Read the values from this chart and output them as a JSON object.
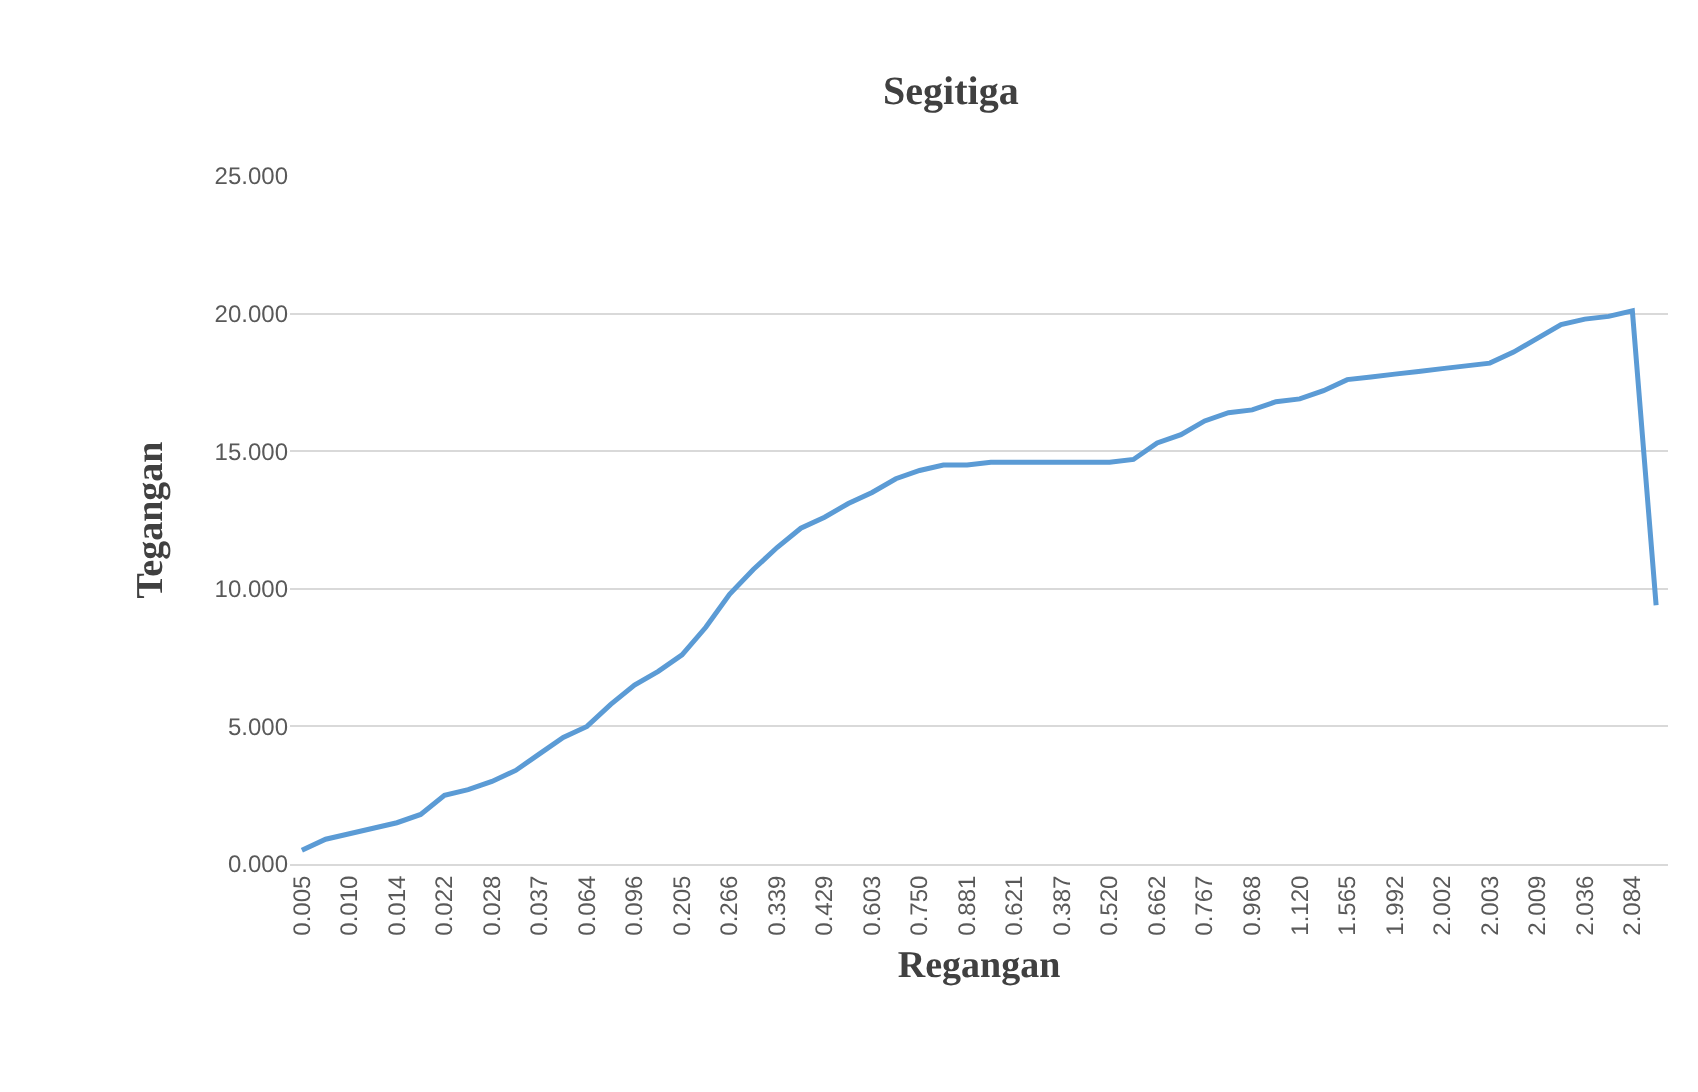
{
  "chart_data": {
    "type": "line",
    "title": "Segitiga",
    "xlabel": "Regangan",
    "ylabel": "Tegangan",
    "categories": [
      "0.005",
      null,
      "0.010",
      null,
      "0.014",
      null,
      "0.022",
      null,
      "0.028",
      null,
      "0.037",
      null,
      "0.064",
      null,
      "0.096",
      null,
      "0.205",
      null,
      "0.266",
      null,
      "0.339",
      null,
      "0.429",
      null,
      "0.603",
      null,
      "0.750",
      null,
      "0.881",
      null,
      "0.621",
      null,
      "0.387",
      null,
      "0.520",
      null,
      "0.662",
      null,
      "0.767",
      null,
      "0.968",
      null,
      "1.120",
      null,
      "1.565",
      null,
      "1.992",
      null,
      "2.002",
      null,
      "2.003",
      null,
      "2.009",
      null,
      "2.036",
      null,
      "2.084",
      null
    ],
    "series": [
      {
        "color": "#5b9bd5",
        "values": [
          0.5,
          0.9,
          1.1,
          1.3,
          1.5,
          1.8,
          2.5,
          2.7,
          3.0,
          3.4,
          4.0,
          4.6,
          5.0,
          5.8,
          6.5,
          7.0,
          7.6,
          8.6,
          9.8,
          10.7,
          11.5,
          12.2,
          12.6,
          13.1,
          13.5,
          14.0,
          14.3,
          14.5,
          14.5,
          14.6,
          14.6,
          14.6,
          14.6,
          14.6,
          14.6,
          14.7,
          15.3,
          15.6,
          16.1,
          16.4,
          16.5,
          16.8,
          16.9,
          17.2,
          17.6,
          17.7,
          17.8,
          17.9,
          18.0,
          18.1,
          18.2,
          18.6,
          19.1,
          19.6,
          19.8,
          19.9,
          20.1,
          9.4
        ]
      }
    ],
    "ylim": [
      0,
      25
    ],
    "yticks": [
      {
        "value": 0,
        "label": "0.000"
      },
      {
        "value": 5,
        "label": "5.000"
      },
      {
        "value": 10,
        "label": "10.000"
      },
      {
        "value": 15,
        "label": "15.000"
      },
      {
        "value": 20,
        "label": "20.000"
      },
      {
        "value": 25,
        "label": "25.000"
      }
    ],
    "grid": "y",
    "marker": "none",
    "line_style": "solid"
  }
}
